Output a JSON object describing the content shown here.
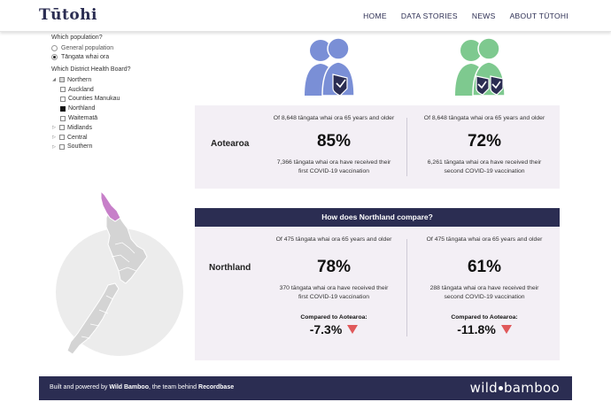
{
  "header": {
    "logo": "Tūtohi",
    "nav": [
      "HOME",
      "DATA STORIES",
      "NEWS",
      "ABOUT TŪTOHI"
    ]
  },
  "sidebar": {
    "population_label": "Which population?",
    "population_options": [
      {
        "label": "General population",
        "selected": false
      },
      {
        "label": "Tāngata whai ora",
        "selected": true
      }
    ],
    "dhb_label": "Which District Health Board?",
    "tree": [
      {
        "label": "Northern",
        "state": "partial",
        "expanded": true,
        "children": [
          {
            "label": "Auckland",
            "state": "empty"
          },
          {
            "label": "Counties Manukau",
            "state": "empty"
          },
          {
            "label": "Northland",
            "state": "full"
          },
          {
            "label": "Waitematā",
            "state": "empty"
          }
        ]
      },
      {
        "label": "Midlands",
        "state": "empty",
        "expanded": false
      },
      {
        "label": "Central",
        "state": "empty",
        "expanded": false
      },
      {
        "label": "Southern",
        "state": "empty",
        "expanded": false
      }
    ]
  },
  "colors": {
    "first_dose": "#7a8fd6",
    "second_dose": "#7ec98f",
    "navy": "#2b2d52",
    "panel": "#f3eff5",
    "down": "#e0595b",
    "highlight_region": "#c77fc9"
  },
  "aotearoa": {
    "region": "Aotearoa",
    "first": {
      "pre": "Of 8,648 tāngata whai ora 65 years and older",
      "pct": "85%",
      "post1": "7,366 tāngata whai ora have received their",
      "post2": "first COVID-19 vaccination"
    },
    "second": {
      "pre": "Of 8,648 tāngata whai ora 65 years and older",
      "pct": "72%",
      "post1": "6,261 tāngata whai ora have received their",
      "post2": "second COVID-19 vaccination"
    }
  },
  "compare": {
    "banner": "How does Northland compare?",
    "region": "Northland",
    "first": {
      "pre": "Of 475 tāngata whai ora 65 years and older",
      "pct": "78%",
      "post1": "370 tāngata whai ora have received their",
      "post2": "first COVID-19 vaccination",
      "cmp_label": "Compared to Aotearoa:",
      "cmp_value": "-7.3%"
    },
    "second": {
      "pre": "Of 475 tāngata whai ora 65 years and older",
      "pct": "61%",
      "post1": "288 tāngata whai ora have received their",
      "post2": "second COVID-19 vaccination",
      "cmp_label": "Compared to Aotearoa:",
      "cmp_value": "-11.8%"
    }
  },
  "footer": {
    "prefix": "Built and powered by ",
    "company": "Wild Bamboo",
    "middle": ", the team behind ",
    "product": "Recordbase",
    "brand_left": "wild",
    "brand_right": "bamboo"
  }
}
